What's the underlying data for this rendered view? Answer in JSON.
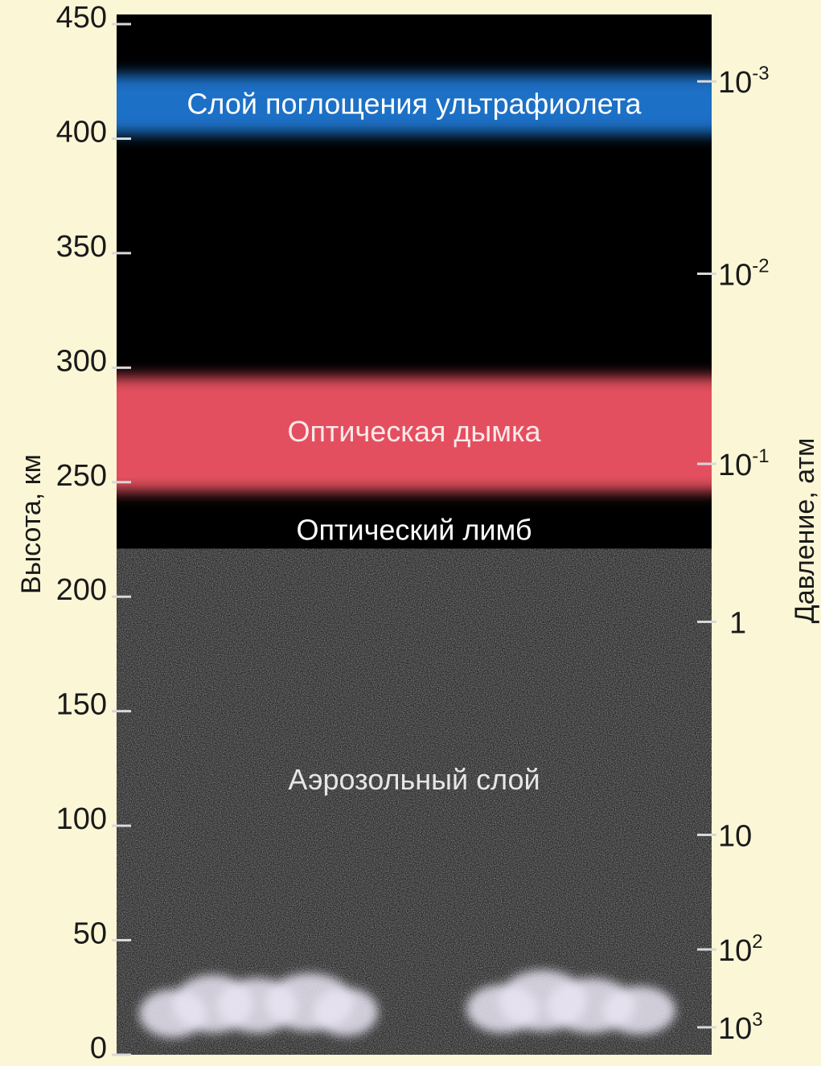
{
  "left_axis": {
    "label": "Высота, км",
    "ticks": [
      {
        "value": 0,
        "label": "0"
      },
      {
        "value": 50,
        "label": "50"
      },
      {
        "value": 100,
        "label": "100"
      },
      {
        "value": 150,
        "label": "150"
      },
      {
        "value": 200,
        "label": "200"
      },
      {
        "value": 250,
        "label": "250"
      },
      {
        "value": 300,
        "label": "300"
      },
      {
        "value": 350,
        "label": "350"
      },
      {
        "value": 400,
        "label": "400"
      },
      {
        "value": 450,
        "label": "450"
      }
    ],
    "range": [
      0,
      450
    ]
  },
  "right_axis": {
    "label": "Давление, атм",
    "ticks": [
      {
        "altitude": 425,
        "base": "10",
        "exp": "-3"
      },
      {
        "altitude": 341,
        "base": "10",
        "exp": "-2"
      },
      {
        "altitude": 258,
        "base": "10",
        "exp": "-1"
      },
      {
        "altitude": 189,
        "base": "1",
        "exp": ""
      },
      {
        "altitude": 96,
        "base": "10",
        "exp": ""
      },
      {
        "altitude": 46,
        "base": "10",
        "exp": "2"
      },
      {
        "altitude": 12,
        "base": "10",
        "exp": "3"
      }
    ]
  },
  "layers": [
    {
      "name": "uv",
      "label": "Слой поглощения ультрафиолета",
      "bottom": 402,
      "top": 428,
      "color": "#1e6fc6",
      "label_color": "#ffffff"
    },
    {
      "name": "haze",
      "label": "Оптическая дымка",
      "bottom": 246,
      "top": 296,
      "color": "#e4505e",
      "label_color": "#fbe9ea"
    },
    {
      "name": "limb",
      "label": "Оптический лимб",
      "altitude": 229,
      "label_color": "#ffffff"
    },
    {
      "name": "aerosol",
      "label": "Аэрозольный слой",
      "bottom": 0,
      "top": 221,
      "color": "#2b2b2b",
      "label_color": "#e6e6e6"
    }
  ],
  "clouds": {
    "bottom": 8,
    "top": 35,
    "color": "#e8e4f2"
  }
}
